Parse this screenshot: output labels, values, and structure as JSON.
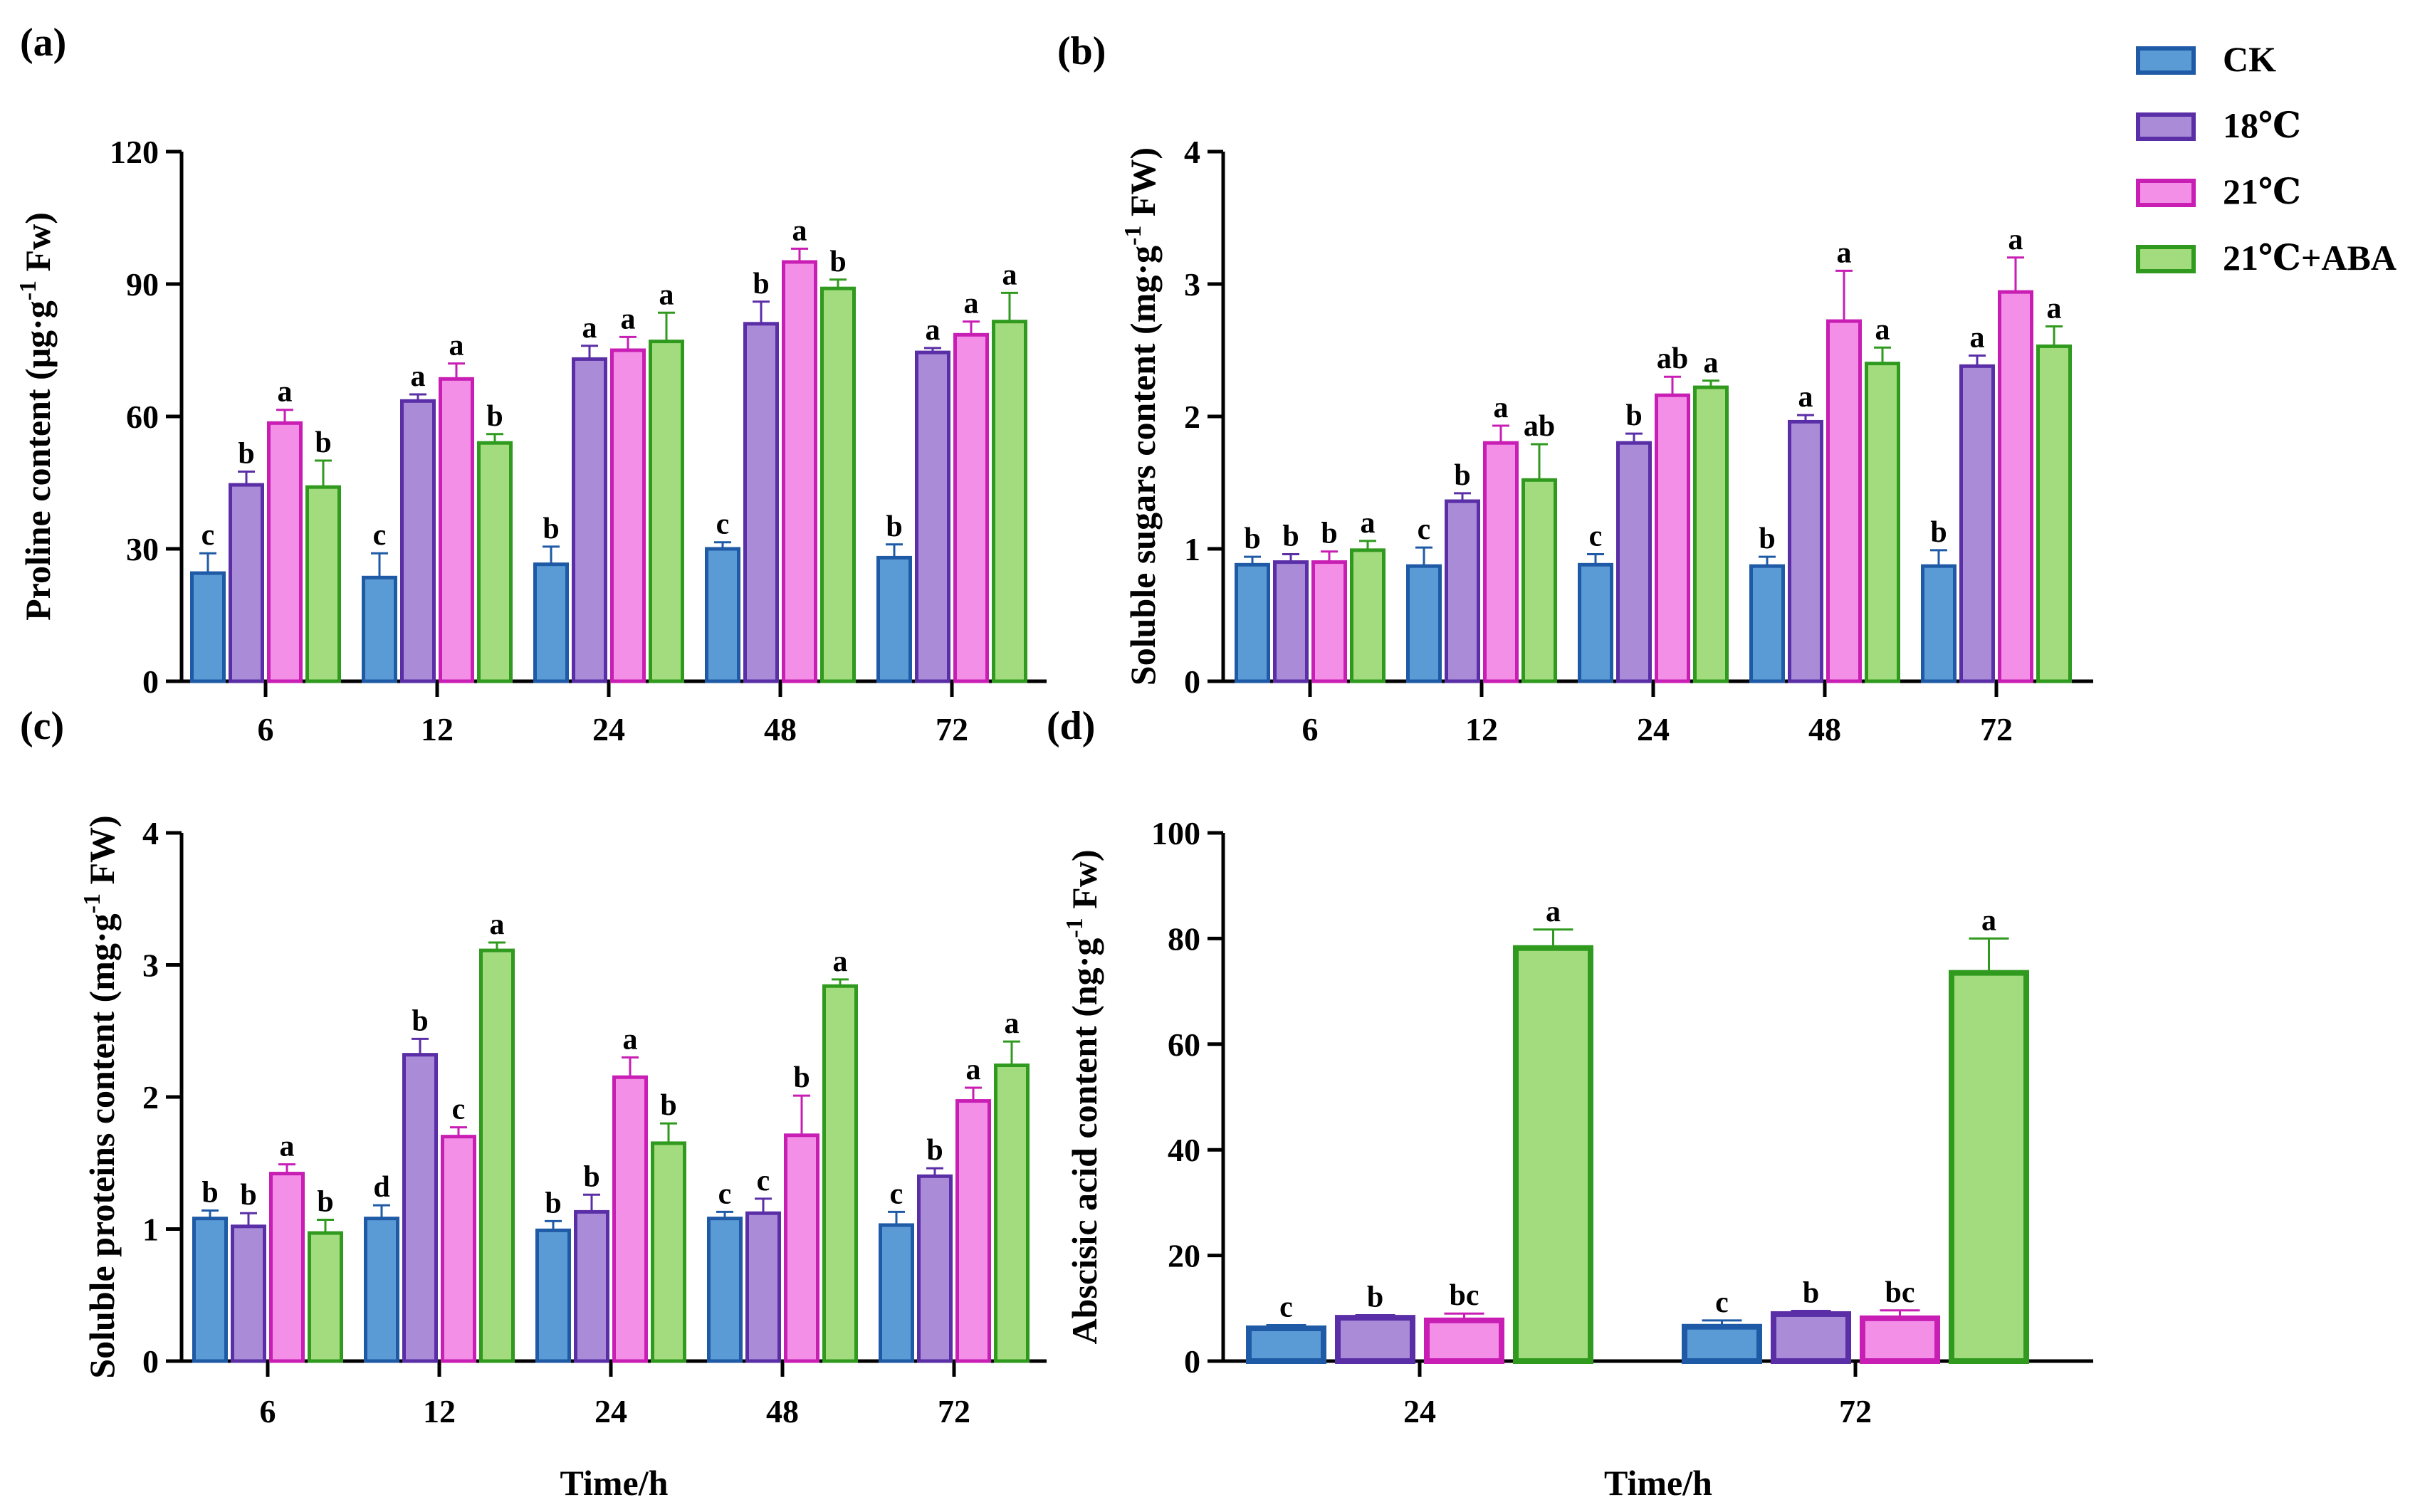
{
  "colors": {
    "CK": {
      "fill": "#5b9bd5",
      "stroke": "#1f5aa6"
    },
    "18C": {
      "fill": "#a98bd8",
      "stroke": "#5a2ea6"
    },
    "21C": {
      "fill": "#f48fe8",
      "stroke": "#c81eb4"
    },
    "21C_ABA": {
      "fill": "#a3dc7e",
      "stroke": "#2f9a1e"
    }
  },
  "legend": [
    "CK",
    "18℃",
    "21℃",
    "21℃+ABA"
  ],
  "chart_data": [
    {
      "panel": "(a)",
      "type": "bar",
      "ylabel_main": "Proline content  (μg·g",
      "ylabel_sup": "-1",
      "ylabel_tail": " Fw)",
      "xlabel": "",
      "categories": [
        "6",
        "12",
        "24",
        "48",
        "72"
      ],
      "ylim": [
        0,
        120
      ],
      "yticks": [
        "0",
        "30",
        "60",
        "90",
        "120"
      ],
      "series": [
        {
          "name": "CK",
          "values": [
            24.5,
            23.5,
            26.5,
            30,
            28
          ],
          "errors": [
            4.5,
            5.5,
            4,
            1.5,
            3
          ],
          "letters": [
            "c",
            "c",
            "b",
            "c",
            "b"
          ]
        },
        {
          "name": "18℃",
          "values": [
            44.5,
            63.5,
            73,
            81,
            74.5
          ],
          "errors": [
            3,
            1.5,
            3,
            5,
            1
          ],
          "letters": [
            "b",
            "a",
            "a",
            "b",
            "a"
          ]
        },
        {
          "name": "21℃",
          "values": [
            58.5,
            68.5,
            75,
            95,
            78.5
          ],
          "errors": [
            3,
            3.5,
            3,
            3,
            3
          ],
          "letters": [
            "a",
            "a",
            "a",
            "a",
            "a"
          ]
        },
        {
          "name": "21℃+ABA",
          "values": [
            44,
            54,
            77,
            89,
            81.5
          ],
          "errors": [
            6,
            2,
            6.5,
            2,
            6.5
          ],
          "letters": [
            "b",
            "b",
            "a",
            "b",
            "a"
          ]
        }
      ]
    },
    {
      "panel": "(b)",
      "type": "bar",
      "ylabel_main": "Soluble sugars content  (mg·g",
      "ylabel_sup": "-1",
      "ylabel_tail": " FW)",
      "xlabel": "",
      "categories": [
        "6",
        "12",
        "24",
        "48",
        "72"
      ],
      "ylim": [
        0,
        4
      ],
      "yticks": [
        "0",
        "1",
        "2",
        "3",
        "4"
      ],
      "series": [
        {
          "name": "CK",
          "values": [
            0.88,
            0.87,
            0.88,
            0.87,
            0.87
          ],
          "errors": [
            0.06,
            0.14,
            0.08,
            0.07,
            0.12
          ],
          "letters": [
            "b",
            "c",
            "c",
            "b",
            "b"
          ]
        },
        {
          "name": "18℃",
          "values": [
            0.9,
            1.36,
            1.8,
            1.96,
            2.38
          ],
          "errors": [
            0.06,
            0.06,
            0.07,
            0.05,
            0.08
          ],
          "letters": [
            "b",
            "b",
            "b",
            "a",
            "a"
          ]
        },
        {
          "name": "21℃",
          "values": [
            0.9,
            1.8,
            2.16,
            2.72,
            2.94
          ],
          "errors": [
            0.08,
            0.13,
            0.14,
            0.38,
            0.26
          ],
          "letters": [
            "b",
            "a",
            "ab",
            "a",
            "a"
          ]
        },
        {
          "name": "21℃+ABA",
          "values": [
            0.99,
            1.52,
            2.22,
            2.4,
            2.53
          ],
          "errors": [
            0.07,
            0.27,
            0.05,
            0.12,
            0.15
          ],
          "letters": [
            "a",
            "ab",
            "a",
            "a",
            "a"
          ]
        }
      ]
    },
    {
      "panel": "(c)",
      "type": "bar",
      "ylabel_main": "Soluble proteins content  (mg·g",
      "ylabel_sup": "-1",
      "ylabel_tail": " FW)",
      "xlabel": "Time/h",
      "categories": [
        "6",
        "12",
        "24",
        "48",
        "72"
      ],
      "ylim": [
        0,
        4
      ],
      "yticks": [
        "0",
        "1",
        "2",
        "3",
        "4"
      ],
      "series": [
        {
          "name": "CK",
          "values": [
            1.08,
            1.08,
            0.99,
            1.08,
            1.03
          ],
          "errors": [
            0.06,
            0.1,
            0.07,
            0.05,
            0.1
          ],
          "letters": [
            "b",
            "d",
            "b",
            "c",
            "c"
          ]
        },
        {
          "name": "18℃",
          "values": [
            1.02,
            2.32,
            1.13,
            1.12,
            1.4
          ],
          "errors": [
            0.1,
            0.12,
            0.13,
            0.11,
            0.06
          ],
          "letters": [
            "b",
            "b",
            "b",
            "c",
            "b"
          ]
        },
        {
          "name": "21℃",
          "values": [
            1.42,
            1.7,
            2.15,
            1.71,
            1.97
          ],
          "errors": [
            0.07,
            0.07,
            0.15,
            0.3,
            0.1
          ],
          "letters": [
            "a",
            "c",
            "a",
            "b",
            "a"
          ]
        },
        {
          "name": "21℃+ABA",
          "values": [
            0.97,
            3.11,
            1.65,
            2.84,
            2.24
          ],
          "errors": [
            0.1,
            0.06,
            0.15,
            0.05,
            0.18
          ],
          "letters": [
            "b",
            "a",
            "b",
            "a",
            "a"
          ]
        }
      ]
    },
    {
      "panel": "(d)",
      "type": "bar",
      "ylabel_main": "Abscisic acid content (ng·g",
      "ylabel_sup": "-1",
      "ylabel_tail": " Fw)",
      "xlabel": "Time/h",
      "categories": [
        "24",
        "72"
      ],
      "ylim": [
        0,
        100
      ],
      "yticks": [
        "0",
        "20",
        "40",
        "60",
        "80",
        "100"
      ],
      "series": [
        {
          "name": "CK",
          "values": [
            6.2,
            6.5
          ],
          "errors": [
            0.6,
            1.2
          ],
          "letters": [
            "c",
            "c"
          ]
        },
        {
          "name": "18℃",
          "values": [
            8.2,
            8.9
          ],
          "errors": [
            0.5,
            0.6
          ],
          "letters": [
            "b",
            "b"
          ]
        },
        {
          "name": "21℃",
          "values": [
            7.7,
            8.1
          ],
          "errors": [
            1.3,
            1.5
          ],
          "letters": [
            "bc",
            "bc"
          ]
        },
        {
          "name": "21℃+ABA",
          "values": [
            78.2,
            73.5
          ],
          "errors": [
            3.5,
            6.5
          ],
          "letters": [
            "a",
            "a"
          ]
        }
      ]
    }
  ]
}
